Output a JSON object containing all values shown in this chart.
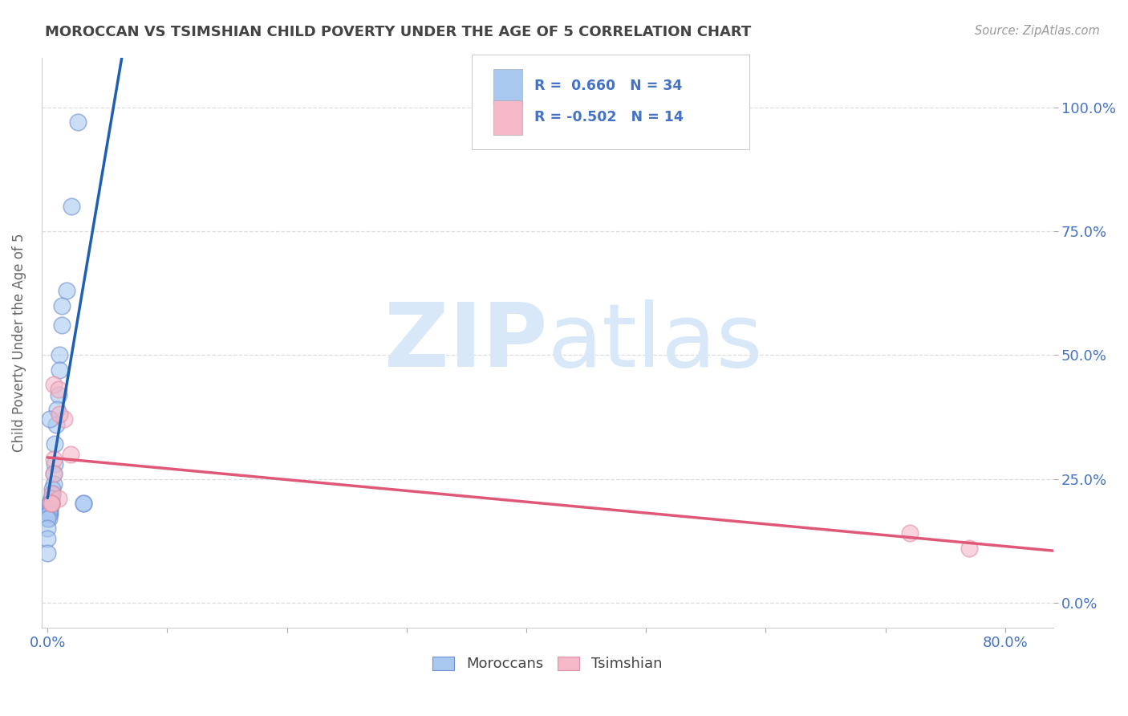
{
  "title": "MOROCCAN VS TSIMSHIAN CHILD POVERTY UNDER THE AGE OF 5 CORRELATION CHART",
  "source": "Source: ZipAtlas.com",
  "ylabel": "Child Poverty Under the Age of 5",
  "legend_r_moroccan": "R =  0.660",
  "legend_n_moroccan": "N = 34",
  "legend_r_tsimshian": "R = -0.502",
  "legend_n_tsimshian": "N = 14",
  "xmin": -0.005,
  "xmax": 0.84,
  "ymin": -0.05,
  "ymax": 1.1,
  "xtick_show": [
    0.0,
    0.8
  ],
  "xtick_labels": [
    "0.0%",
    "80.0%"
  ],
  "xtick_minor": [
    0.1,
    0.2,
    0.3,
    0.4,
    0.5,
    0.6,
    0.7
  ],
  "yticks": [
    0.0,
    0.25,
    0.5,
    0.75,
    1.0
  ],
  "ytick_labels": [
    "0.0%",
    "25.0%",
    "50.0%",
    "75.0%",
    "100.0%"
  ],
  "moroccan_x": [
    0.025,
    0.02,
    0.016,
    0.012,
    0.012,
    0.01,
    0.01,
    0.009,
    0.008,
    0.007,
    0.006,
    0.006,
    0.005,
    0.005,
    0.004,
    0.004,
    0.003,
    0.003,
    0.003,
    0.003,
    0.002,
    0.002,
    0.002,
    0.002,
    0.001,
    0.001,
    0.001,
    0.0,
    0.0,
    0.0,
    0.0,
    0.03,
    0.03,
    0.002
  ],
  "moroccan_y": [
    0.97,
    0.8,
    0.63,
    0.6,
    0.56,
    0.5,
    0.47,
    0.42,
    0.39,
    0.36,
    0.32,
    0.28,
    0.26,
    0.24,
    0.23,
    0.22,
    0.21,
    0.21,
    0.2,
    0.2,
    0.2,
    0.19,
    0.19,
    0.18,
    0.18,
    0.18,
    0.17,
    0.17,
    0.15,
    0.13,
    0.1,
    0.2,
    0.2,
    0.37
  ],
  "tsimshian_x": [
    0.005,
    0.009,
    0.014,
    0.019,
    0.005,
    0.005,
    0.004,
    0.009,
    0.003,
    0.003,
    0.72,
    0.77,
    0.003,
    0.01
  ],
  "tsimshian_y": [
    0.44,
    0.43,
    0.37,
    0.3,
    0.29,
    0.26,
    0.22,
    0.21,
    0.2,
    0.2,
    0.14,
    0.11,
    0.2,
    0.38
  ],
  "moroccan_color": "#A8C8F0",
  "tsimshian_color": "#F4B8C8",
  "moroccan_edge_color": "#7090D0",
  "tsimshian_edge_color": "#E090A8",
  "moroccan_line_color": "#2060B0",
  "tsimshian_line_color": "#E05878",
  "bg_color": "#FFFFFF",
  "grid_color": "#DDDDDD",
  "title_color": "#444444",
  "source_color": "#999999",
  "axis_label_color": "#666666",
  "tick_label_color": "#4472C4",
  "watermark_zip_color": "#D8E8F8",
  "watermark_atlas_color": "#D8E8F8"
}
